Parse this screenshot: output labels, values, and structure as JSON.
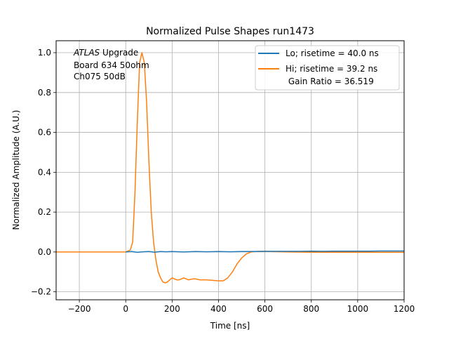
{
  "chart_data": {
    "type": "line",
    "title": "Normalized Pulse Shapes run1473",
    "xlabel": "Time [ns]",
    "ylabel": "Normalized Amplitude (A.U.)",
    "xlim": [
      -300,
      1200
    ],
    "ylim": [
      -0.24,
      1.06
    ],
    "xticks": [
      -200,
      0,
      200,
      400,
      600,
      800,
      1000,
      1200
    ],
    "xtick_labels": [
      "−200",
      "0",
      "200",
      "400",
      "600",
      "800",
      "1000",
      "1200"
    ],
    "yticks": [
      -0.2,
      0.0,
      0.2,
      0.4,
      0.6,
      0.8,
      1.0
    ],
    "ytick_labels": [
      "−0.2",
      "0.0",
      "0.2",
      "0.4",
      "0.6",
      "0.8",
      "1.0"
    ],
    "grid": true,
    "legend_position": "top-right",
    "annotation": {
      "atlas": "ATLAS",
      "upgrade": " Upgrade",
      "line2": "Board 634 50ohm",
      "line3": "Ch075 50dB"
    },
    "series": [
      {
        "name": "Lo; risetime = 40.0 ns",
        "color": "#1f77b4",
        "x": [
          0,
          25,
          50,
          75,
          100,
          125,
          150,
          175,
          200,
          250,
          300,
          350,
          400,
          450,
          500,
          550,
          600,
          650,
          700,
          750,
          800,
          850,
          900,
          950,
          1000,
          1050,
          1100,
          1150,
          1200
        ],
        "y": [
          0.0,
          0.002,
          -0.002,
          0.001,
          0.002,
          -0.001,
          0.002,
          0.001,
          0.002,
          0.0,
          0.002,
          0.001,
          0.002,
          0.001,
          0.002,
          0.002,
          0.003,
          0.003,
          0.003,
          0.003,
          0.004,
          0.003,
          0.004,
          0.004,
          0.004,
          0.004,
          0.005,
          0.005,
          0.005
        ]
      },
      {
        "name": "Hi; risetime = 39.2 ns",
        "legend_line2": " Gain Ratio = 36.519",
        "color": "#ff7f0e",
        "x": [
          -300,
          -200,
          -100,
          0,
          20,
          30,
          40,
          50,
          60,
          70,
          80,
          90,
          100,
          110,
          120,
          130,
          140,
          150,
          160,
          170,
          180,
          190,
          200,
          210,
          220,
          230,
          240,
          250,
          260,
          270,
          280,
          290,
          300,
          320,
          350,
          380,
          400,
          420,
          440,
          460,
          480,
          500,
          520,
          540,
          560,
          580,
          600,
          700,
          800,
          900,
          1000,
          1100,
          1200
        ],
        "y": [
          0.0,
          0.0,
          0.0,
          0.0,
          0.01,
          0.05,
          0.3,
          0.65,
          0.95,
          1.0,
          0.95,
          0.75,
          0.45,
          0.2,
          0.05,
          -0.04,
          -0.1,
          -0.13,
          -0.15,
          -0.155,
          -0.15,
          -0.14,
          -0.13,
          -0.135,
          -0.14,
          -0.14,
          -0.135,
          -0.13,
          -0.135,
          -0.14,
          -0.138,
          -0.135,
          -0.135,
          -0.14,
          -0.14,
          -0.143,
          -0.145,
          -0.145,
          -0.13,
          -0.1,
          -0.06,
          -0.03,
          -0.01,
          0.0,
          0.002,
          0.003,
          0.003,
          0.0,
          -0.001,
          -0.002,
          -0.002,
          -0.002,
          -0.002
        ]
      }
    ]
  }
}
